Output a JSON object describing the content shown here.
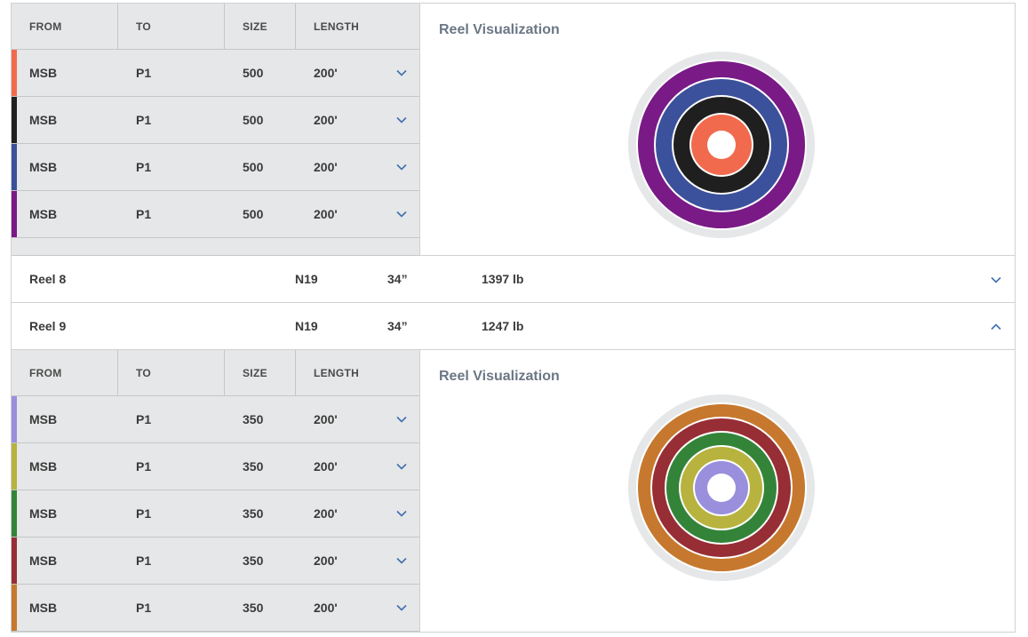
{
  "columns": {
    "from": "FROM",
    "to": "TO",
    "size": "SIZE",
    "length": "LENGTH"
  },
  "viz_title": "Reel Visualization",
  "icons": {
    "expand": "chevron-down-icon",
    "collapse": "chevron-up-icon"
  },
  "accent": "#3f6fb0",
  "reel_a": {
    "cables": [
      {
        "from": "MSB",
        "to": "P1",
        "size": "500",
        "length": "200'",
        "color": "#f26a4e"
      },
      {
        "from": "MSB",
        "to": "P1",
        "size": "500",
        "length": "200'",
        "color": "#1f1f1f"
      },
      {
        "from": "MSB",
        "to": "P1",
        "size": "500",
        "length": "200'",
        "color": "#3c519b"
      },
      {
        "from": "MSB",
        "to": "P1",
        "size": "500",
        "length": "200'",
        "color": "#7a1a86"
      }
    ],
    "visualization_colors_inner_to_outer": [
      "#f26a4e",
      "#1f1f1f",
      "#3c519b",
      "#7a1a86"
    ]
  },
  "reels": [
    {
      "name": "Reel 8",
      "code": "N19",
      "diameter": "34”",
      "weight": "1397 lb",
      "expanded": false
    },
    {
      "name": "Reel 9",
      "code": "N19",
      "diameter": "34”",
      "weight": "1247 lb",
      "expanded": true
    }
  ],
  "reel_9": {
    "cables": [
      {
        "from": "MSB",
        "to": "P1",
        "size": "350",
        "length": "200'",
        "color": "#9a8fdc"
      },
      {
        "from": "MSB",
        "to": "P1",
        "size": "350",
        "length": "200'",
        "color": "#b7b33e"
      },
      {
        "from": "MSB",
        "to": "P1",
        "size": "350",
        "length": "200'",
        "color": "#338439"
      },
      {
        "from": "MSB",
        "to": "P1",
        "size": "350",
        "length": "200'",
        "color": "#972d35"
      },
      {
        "from": "MSB",
        "to": "P1",
        "size": "350",
        "length": "200'",
        "color": "#c6792e"
      }
    ],
    "visualization_colors_inner_to_outer": [
      "#9a8fdc",
      "#b7b33e",
      "#338439",
      "#972d35",
      "#c6792e"
    ]
  }
}
